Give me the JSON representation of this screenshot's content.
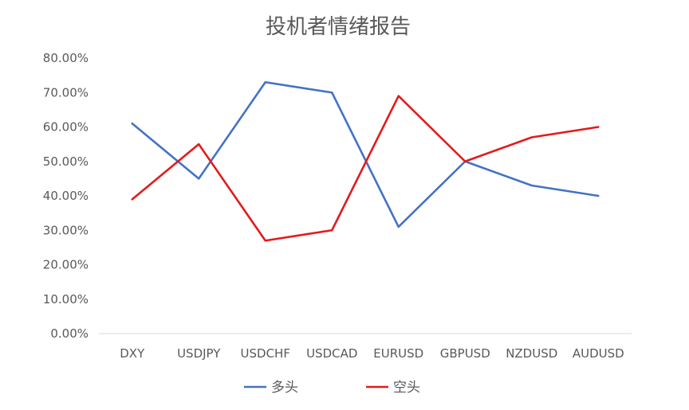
{
  "chart_data": {
    "type": "line",
    "title": "投机者情绪报告",
    "xlabel": "",
    "ylabel": "",
    "categories": [
      "DXY",
      "USDJPY",
      "USDCHF",
      "USDCAD",
      "EURUSD",
      "GBPUSD",
      "NZDUSD",
      "AUDUSD"
    ],
    "series": [
      {
        "name": "多头",
        "color": "#4472C4",
        "values": [
          61.0,
          45.0,
          73.0,
          70.0,
          31.0,
          50.0,
          43.0,
          40.0
        ]
      },
      {
        "name": "空头",
        "color": "#E31A1C",
        "values": [
          39.0,
          55.0,
          27.0,
          30.0,
          69.0,
          50.0,
          57.0,
          60.0
        ]
      }
    ],
    "ylim": [
      0,
      80
    ],
    "y_ticks": [
      "0.00%",
      "10.00%",
      "20.00%",
      "30.00%",
      "40.00%",
      "50.00%",
      "60.00%",
      "70.00%",
      "80.00%"
    ],
    "grid": false,
    "legend_position": "bottom"
  }
}
